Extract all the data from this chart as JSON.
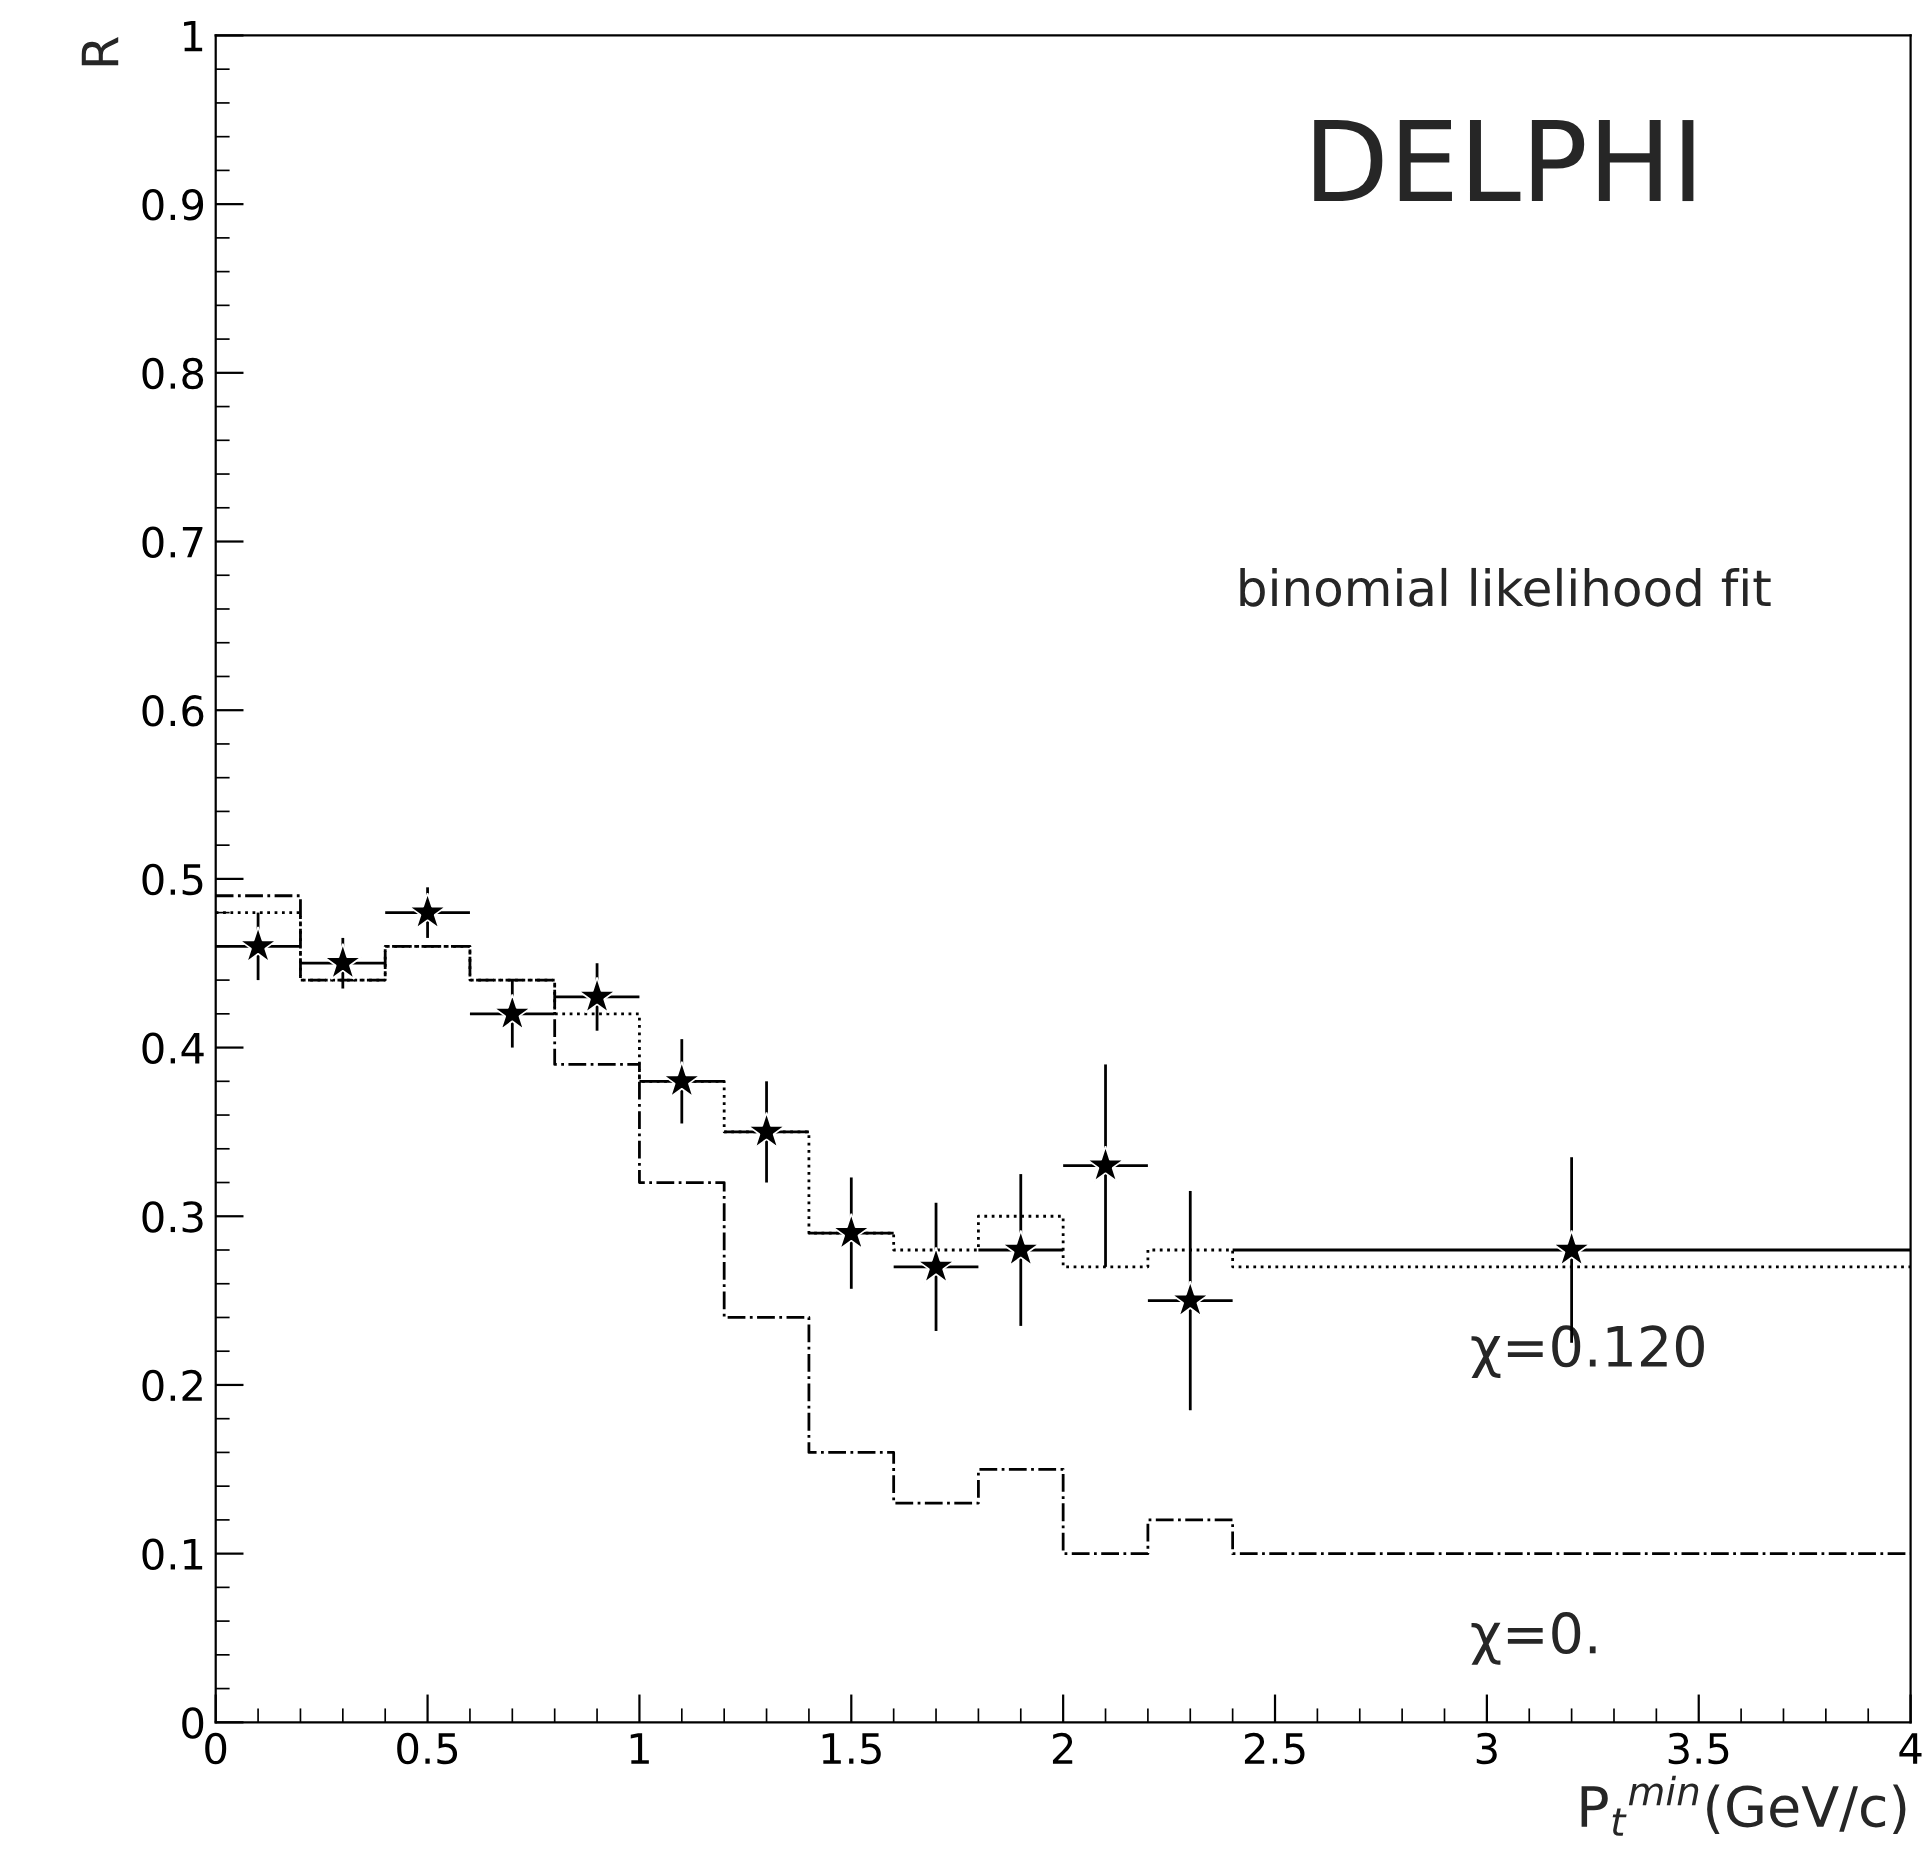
{
  "chart_data": {
    "type": "step",
    "xlabel": "P$_{t}$$^{min}$(GeV/c)",
    "ylabel": "R",
    "annotations": [
      "DELPHI",
      "binomial likelihood fit"
    ],
    "xlim": [
      0,
      4
    ],
    "xticks": [
      0,
      0.5,
      1,
      1.5,
      2,
      2.5,
      3,
      3.5,
      4
    ],
    "ylim": [
      0,
      1
    ],
    "yticks": [
      0,
      0.1,
      0.2,
      0.3,
      0.4,
      0.5,
      0.6,
      0.7,
      0.8,
      0.9,
      1
    ],
    "grid": false,
    "legend": false,
    "series": [
      {
        "name": "χ=0.120",
        "line_style": "dotted",
        "color": "#000000",
        "x": [
          0,
          0.2,
          0.4,
          0.6,
          0.8,
          1.0,
          1.2,
          1.4,
          1.6,
          1.8,
          2.0,
          2.2,
          2.4,
          4.0
        ],
        "values": [
          0.48,
          0.44,
          0.46,
          0.44,
          0.42,
          0.38,
          0.35,
          0.29,
          0.28,
          0.3,
          0.27,
          0.28,
          0.27,
          0.27
        ]
      },
      {
        "name": "χ=0.",
        "line_style": "dashdot",
        "color": "#000000",
        "x": [
          0,
          0.2,
          0.4,
          0.6,
          0.8,
          1.0,
          1.2,
          1.4,
          1.6,
          1.8,
          2.0,
          2.2,
          2.4,
          4.0
        ],
        "values": [
          0.49,
          0.44,
          0.46,
          0.44,
          0.39,
          0.32,
          0.24,
          0.16,
          0.13,
          0.15,
          0.1,
          0.12,
          0.1,
          0.1
        ]
      },
      {
        "type": "scatter",
        "marker": "star",
        "color": "#000000",
        "x": [
          0.1,
          0.3,
          0.5,
          0.7,
          0.9,
          1.1,
          1.3,
          1.5,
          1.7,
          1.9,
          2.1,
          2.3,
          3.2
        ],
        "values": [
          0.46,
          0.45,
          0.48,
          0.42,
          0.43,
          0.38,
          0.35,
          0.29,
          0.27,
          0.28,
          0.33,
          0.25,
          0.28
        ],
        "errors": [
          0.02,
          0.015,
          0.015,
          0.02,
          0.02,
          0.025,
          0.03,
          0.033,
          0.038,
          0.045,
          0.06,
          0.065,
          0.055
        ],
        "xerrors": [
          0.1,
          0.1,
          0.1,
          0.1,
          0.1,
          0.1,
          0.1,
          0.1,
          0.1,
          0.1,
          0.1,
          0.1,
          0.8
        ]
      }
    ]
  }
}
